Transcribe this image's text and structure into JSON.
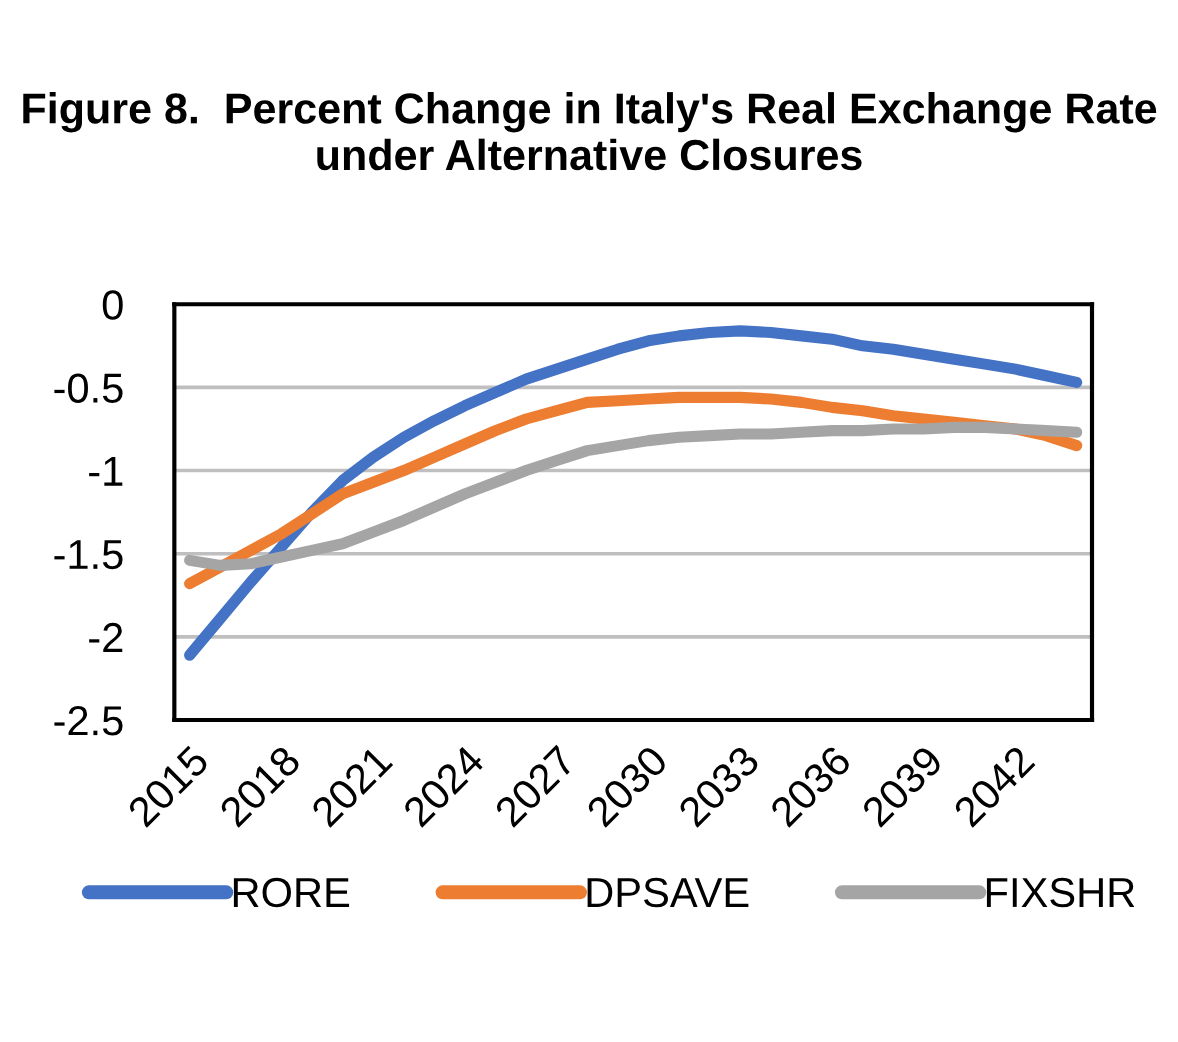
{
  "chart_data": {
    "type": "line",
    "title": "Figure 8.  Percent Change in Italy's Real Exchange Rate under Alternative Closures",
    "categories": [
      "2015",
      null,
      null,
      "2018",
      null,
      null,
      "2021",
      null,
      null,
      "2024",
      null,
      null,
      "2027",
      null,
      null,
      "2030",
      null,
      null,
      "2033",
      null,
      null,
      "2036",
      null,
      null,
      "2039",
      null,
      null,
      "2042",
      null,
      null
    ],
    "series": [
      {
        "name": "RORE",
        "color": "#4472c4",
        "values": [
          -2.11,
          -1.89,
          -1.67,
          -1.46,
          -1.25,
          -1.06,
          -0.92,
          -0.8,
          -0.7,
          -0.61,
          -0.53,
          -0.45,
          -0.39,
          -0.33,
          -0.27,
          -0.22,
          -0.19,
          -0.17,
          -0.16,
          -0.17,
          -0.19,
          -0.21,
          -0.25,
          -0.27,
          -0.3,
          -0.33,
          -0.36,
          -0.39,
          -0.43,
          -0.47
        ]
      },
      {
        "name": "DPSAVE",
        "color": "#ed7d31",
        "values": [
          -1.68,
          -1.58,
          -1.48,
          -1.38,
          -1.26,
          -1.14,
          -1.07,
          -1.0,
          -0.92,
          -0.84,
          -0.76,
          -0.69,
          -0.64,
          -0.59,
          -0.58,
          -0.57,
          -0.56,
          -0.56,
          -0.56,
          -0.57,
          -0.59,
          -0.62,
          -0.64,
          -0.67,
          -0.69,
          -0.71,
          -0.73,
          -0.75,
          -0.79,
          -0.85
        ]
      },
      {
        "name": "FIXSHR",
        "color": "#a5a5a5",
        "values": [
          -1.54,
          -1.57,
          -1.56,
          -1.52,
          -1.48,
          -1.44,
          -1.37,
          -1.3,
          -1.22,
          -1.14,
          -1.07,
          -1.0,
          -0.94,
          -0.88,
          -0.85,
          -0.82,
          -0.8,
          -0.79,
          -0.78,
          -0.78,
          -0.77,
          -0.76,
          -0.76,
          -0.75,
          -0.75,
          -0.74,
          -0.74,
          -0.75,
          -0.76,
          -0.77
        ]
      }
    ],
    "ylim": [
      -2.5,
      0
    ],
    "yticks": [
      0,
      -0.5,
      -1,
      -1.5,
      -2,
      -2.5
    ],
    "grid": "y",
    "legend": "bottom",
    "marker": "none",
    "line_style": "solid"
  }
}
